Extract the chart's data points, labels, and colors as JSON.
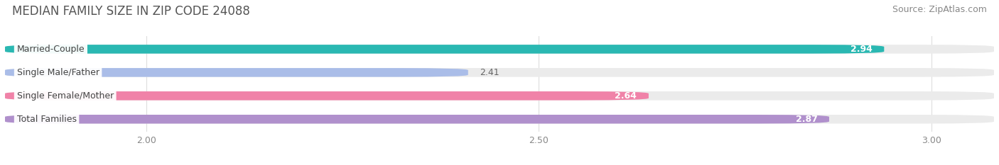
{
  "title": "MEDIAN FAMILY SIZE IN ZIP CODE 24088",
  "source": "Source: ZipAtlas.com",
  "categories": [
    "Married-Couple",
    "Single Male/Father",
    "Single Female/Mother",
    "Total Families"
  ],
  "values": [
    2.94,
    2.41,
    2.64,
    2.87
  ],
  "bar_colors": [
    "#2ab8b2",
    "#aabde8",
    "#f082a8",
    "#b090cc"
  ],
  "xlim_min": 1.82,
  "xlim_max": 3.08,
  "xticks": [
    2.0,
    2.5,
    3.0
  ],
  "xtick_labels": [
    "2.00",
    "2.50",
    "3.00"
  ],
  "bar_height": 0.38,
  "bar_gap": 1.0,
  "title_fontsize": 12,
  "source_fontsize": 9,
  "label_fontsize": 9,
  "value_fontsize": 9,
  "tick_fontsize": 9,
  "background_color": "#ffffff",
  "bar_bg_color": "#ebebeb",
  "grid_color": "#dddddd",
  "title_color": "#555555",
  "source_color": "#888888",
  "tick_color": "#888888"
}
